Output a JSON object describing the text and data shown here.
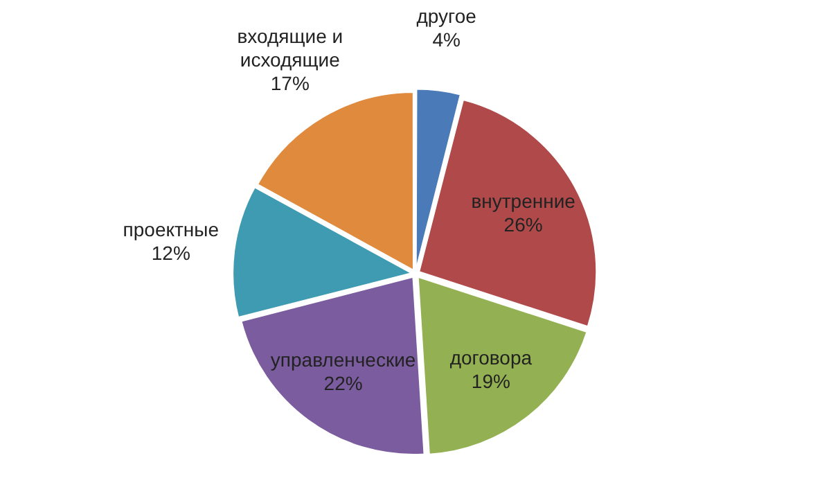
{
  "chart_data": {
    "type": "pie",
    "categories": [
      "другое",
      "внутренние",
      "договора",
      "управленческие",
      "проектные",
      "входящие и исходящие"
    ],
    "values": [
      4,
      26,
      19,
      22,
      12,
      17
    ],
    "colors": [
      "#4a7ab8",
      "#b04a4a",
      "#93b152",
      "#7b5c9f",
      "#3f9bb1",
      "#e08a3e"
    ],
    "value_labels": [
      "4%",
      "26%",
      "19%",
      "22%",
      "12%",
      "17%"
    ],
    "legend": false
  }
}
